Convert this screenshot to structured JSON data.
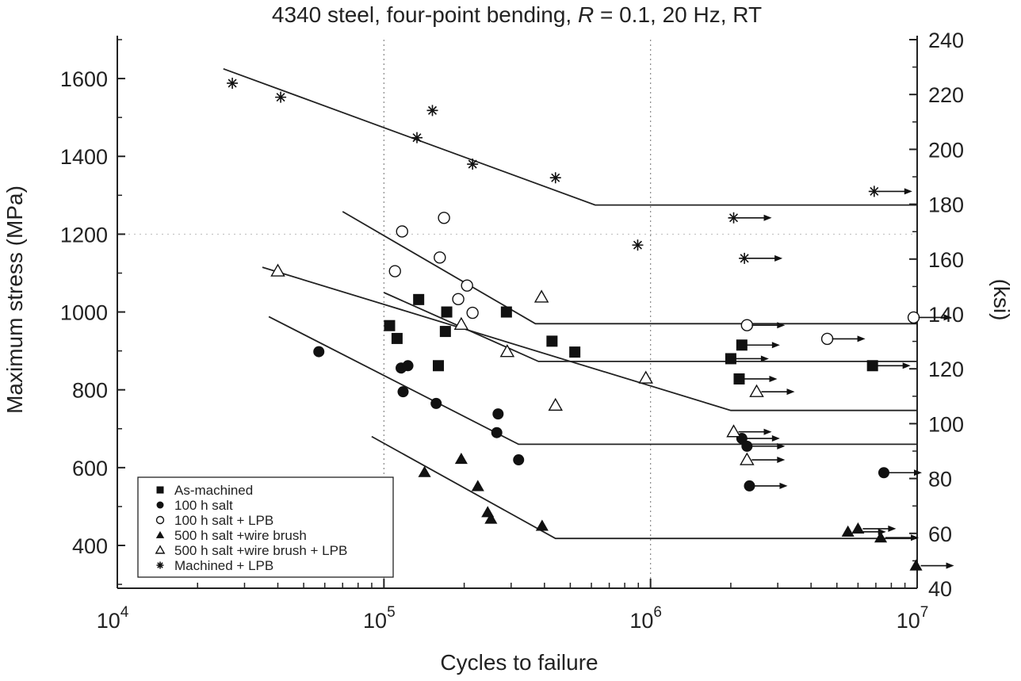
{
  "chart_data": {
    "type": "scatter",
    "title_parts": [
      "4340 steel, four-point bending, ",
      "R",
      " = 0.1, 20 Hz, RT"
    ],
    "xlabel": "Cycles to failure",
    "ylabel": "Maximum stress (MPa)",
    "y2label": "(ksi)",
    "xscale": "log",
    "xlim": [
      10000,
      10000000
    ],
    "ylim": [
      290,
      1700
    ],
    "y2lim": [
      40,
      240
    ],
    "x_ticks": [
      {
        "value": 10000,
        "base": "10",
        "exp": "4"
      },
      {
        "value": 100000,
        "base": "10",
        "exp": "5"
      },
      {
        "value": 1000000,
        "base": "10",
        "exp": "6"
      },
      {
        "value": 10000000,
        "base": "10",
        "exp": "7"
      }
    ],
    "y_ticks": [
      "400",
      "600",
      "800",
      "1000",
      "1200",
      "1400",
      "1600"
    ],
    "y2_ticks": [
      "40",
      "60",
      "80",
      "100",
      "120",
      "140",
      "160",
      "180",
      "200",
      "220",
      "240"
    ],
    "grid": "dotted vertical lines at each decade",
    "legend_position": "bottom-left",
    "series": [
      {
        "name": "As-machined",
        "marker": "square-filled",
        "points": [
          [
            105000,
            965
          ],
          [
            135000,
            1032
          ],
          [
            112000,
            932
          ],
          [
            172000,
            1000
          ],
          [
            170000,
            950
          ],
          [
            160000,
            862
          ],
          [
            288000,
            1000
          ],
          [
            427000,
            925
          ],
          [
            520000,
            897
          ]
        ],
        "runouts": [
          [
            2000000,
            880
          ],
          [
            2200000,
            915
          ],
          [
            2150000,
            828
          ],
          [
            6800000,
            862
          ]
        ],
        "fit": [
          [
            100000,
            1050
          ],
          [
            380000,
            873
          ],
          [
            10000000,
            873
          ]
        ]
      },
      {
        "name": "100 h salt",
        "marker": "circle-filled",
        "points": [
          [
            57000,
            898
          ],
          [
            116000,
            856
          ],
          [
            123000,
            862
          ],
          [
            118000,
            795
          ],
          [
            157000,
            765
          ],
          [
            268000,
            738
          ],
          [
            265000,
            690
          ],
          [
            320000,
            620
          ]
        ],
        "runouts": [
          [
            2200000,
            675
          ],
          [
            2300000,
            655
          ],
          [
            2350000,
            553
          ],
          [
            7500000,
            587
          ]
        ],
        "fit": [
          [
            37000,
            988
          ],
          [
            320000,
            660
          ],
          [
            10000000,
            660
          ]
        ]
      },
      {
        "name": "100 h salt + LPB",
        "marker": "circle-open",
        "points": [
          [
            117000,
            1207
          ],
          [
            168000,
            1242
          ],
          [
            110000,
            1105
          ],
          [
            162000,
            1140
          ],
          [
            205000,
            1068
          ],
          [
            190000,
            1033
          ],
          [
            215000,
            998
          ]
        ],
        "runouts": [
          [
            2300000,
            966
          ],
          [
            4600000,
            931
          ],
          [
            9700000,
            986
          ]
        ],
        "fit": [
          [
            70000,
            1258
          ],
          [
            370000,
            970
          ],
          [
            10000000,
            970
          ]
        ]
      },
      {
        "name": "500 h salt +wire brush",
        "marker": "triangle-filled",
        "points": [
          [
            142000,
            588
          ],
          [
            195000,
            622
          ],
          [
            225000,
            552
          ],
          [
            245000,
            485
          ],
          [
            252000,
            468
          ],
          [
            392000,
            450
          ]
        ],
        "runouts": [
          [
            5500000,
            435
          ],
          [
            6000000,
            443
          ],
          [
            7300000,
            420
          ],
          [
            9900000,
            348
          ]
        ],
        "fit": [
          [
            90000,
            680
          ],
          [
            440000,
            418
          ],
          [
            10000000,
            418
          ]
        ]
      },
      {
        "name": "500 h salt +wire brush + LPB",
        "marker": "triangle-open",
        "points": [
          [
            40000,
            1105
          ],
          [
            195000,
            968
          ],
          [
            290000,
            898
          ],
          [
            390000,
            1038
          ],
          [
            440000,
            760
          ],
          [
            960000,
            830
          ]
        ],
        "runouts": [
          [
            2050000,
            692
          ],
          [
            2300000,
            620
          ],
          [
            2500000,
            795
          ]
        ],
        "fit": [
          [
            35000,
            1115
          ],
          [
            2000000,
            747
          ],
          [
            10000000,
            747
          ]
        ]
      },
      {
        "name": "Machined + LPB",
        "marker": "asterisk",
        "points": [
          [
            27000,
            1588
          ],
          [
            41000,
            1552
          ],
          [
            133000,
            1448
          ],
          [
            152000,
            1518
          ],
          [
            215000,
            1380
          ],
          [
            440000,
            1345
          ],
          [
            895000,
            1172
          ]
        ],
        "runouts": [
          [
            2050000,
            1242
          ],
          [
            2250000,
            1138
          ],
          [
            6900000,
            1310
          ]
        ],
        "fit": [
          [
            25000,
            1625
          ],
          [
            620000,
            1275
          ],
          [
            10000000,
            1275
          ]
        ]
      }
    ]
  }
}
